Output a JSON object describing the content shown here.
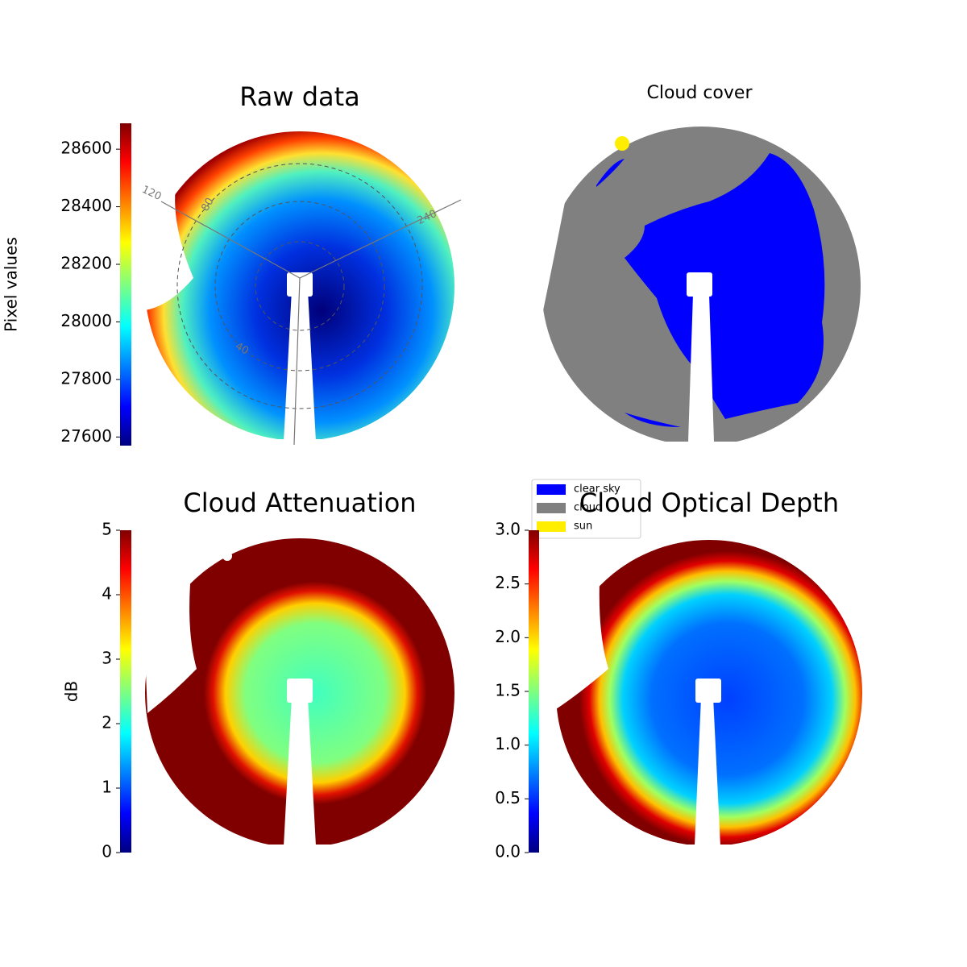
{
  "chart_data": [
    {
      "type": "image",
      "title": "Raw data",
      "ylabel": "Pixel values",
      "ylim": [
        27570,
        28690
      ],
      "yticks": [
        27600,
        27800,
        28000,
        28200,
        28400,
        28600
      ],
      "annotations": [
        "120",
        "80",
        "240",
        "40"
      ]
    },
    {
      "type": "image",
      "title": "Cloud cover",
      "series": [
        {
          "name": "clear sky",
          "color": "#0000ff"
        },
        {
          "name": "cloud",
          "color": "#808080"
        },
        {
          "name": "sun",
          "color": "#ffee00"
        }
      ]
    },
    {
      "type": "image",
      "title": "Cloud Attenuation",
      "ylabel": "dB",
      "ylim": [
        0,
        5
      ],
      "yticks": [
        0,
        1,
        2,
        3,
        4,
        5
      ]
    },
    {
      "type": "image",
      "title": "Cloud Optical Depth",
      "ylim": [
        0,
        3
      ],
      "yticks": [
        {
          "value": 0,
          "label": "0.0"
        },
        0.5,
        {
          "value": 1,
          "label": "1.0"
        },
        1.5,
        {
          "value": 2,
          "label": "2.0"
        },
        2.5,
        {
          "value": 3,
          "label": "3.0"
        }
      ]
    }
  ]
}
